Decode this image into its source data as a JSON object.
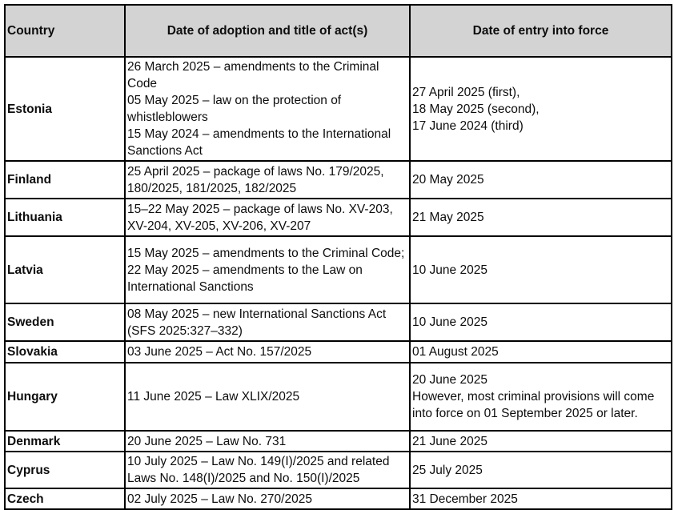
{
  "table": {
    "header_bg": "#d3d3d3",
    "border_color": "#000000",
    "headers": {
      "country": "Country",
      "adoption": "Date of adoption and title of act(s)",
      "entry": "Date of entry into force"
    },
    "rows": [
      {
        "country": "Estonia",
        "adoption": "26 March 2025 – amendments to the Criminal Code\n05 May 2025 – law on the protection of whistleblowers\n15 May 2024 – amendments to the International Sanctions Act",
        "entry": "27 April 2025 (first),\n18 May 2025 (second),\n17 June 2024 (third)"
      },
      {
        "country": "Finland",
        "adoption": "25 April 2025 – package of laws No. 179/2025, 180/2025, 181/2025, 182/2025",
        "entry": "20 May 2025"
      },
      {
        "country": "Lithuania",
        "adoption": "15–22 May 2025 – package of laws No. XV-203, XV-204, XV-205, XV-206, XV-207",
        "entry": "21 May 2025"
      },
      {
        "country": "Latvia",
        "adoption": "15 May 2025 – amendments to the Criminal Code;\n22 May 2025 – amendments to the Law on International Sanctions",
        "entry": "10 June 2025"
      },
      {
        "country": "Sweden",
        "adoption": "08 May 2025 – new International Sanctions Act (SFS 2025:327–332)",
        "entry": "10 June 2025"
      },
      {
        "country": "Slovakia",
        "adoption": "03 June 2025 – Act No. 157/2025",
        "entry": "01 August 2025"
      },
      {
        "country": "Hungary",
        "adoption": "11 June 2025 – Law XLIX/2025",
        "entry": "20 June 2025\nHowever, most criminal provisions will come into force on 01 September 2025 or later."
      },
      {
        "country": "Denmark",
        "adoption": "20 June 2025 – Law No. 731",
        "entry": "21 June 2025"
      },
      {
        "country": "Cyprus",
        "adoption": "10 July 2025 – Law No. 149(I)/2025 and related Laws No. 148(I)/2025 and No. 150(I)/2025",
        "entry": "25 July 2025"
      },
      {
        "country": "Czech",
        "adoption": "02 July 2025 – Law No. 270/2025",
        "entry": "31 December 2025"
      }
    ]
  }
}
